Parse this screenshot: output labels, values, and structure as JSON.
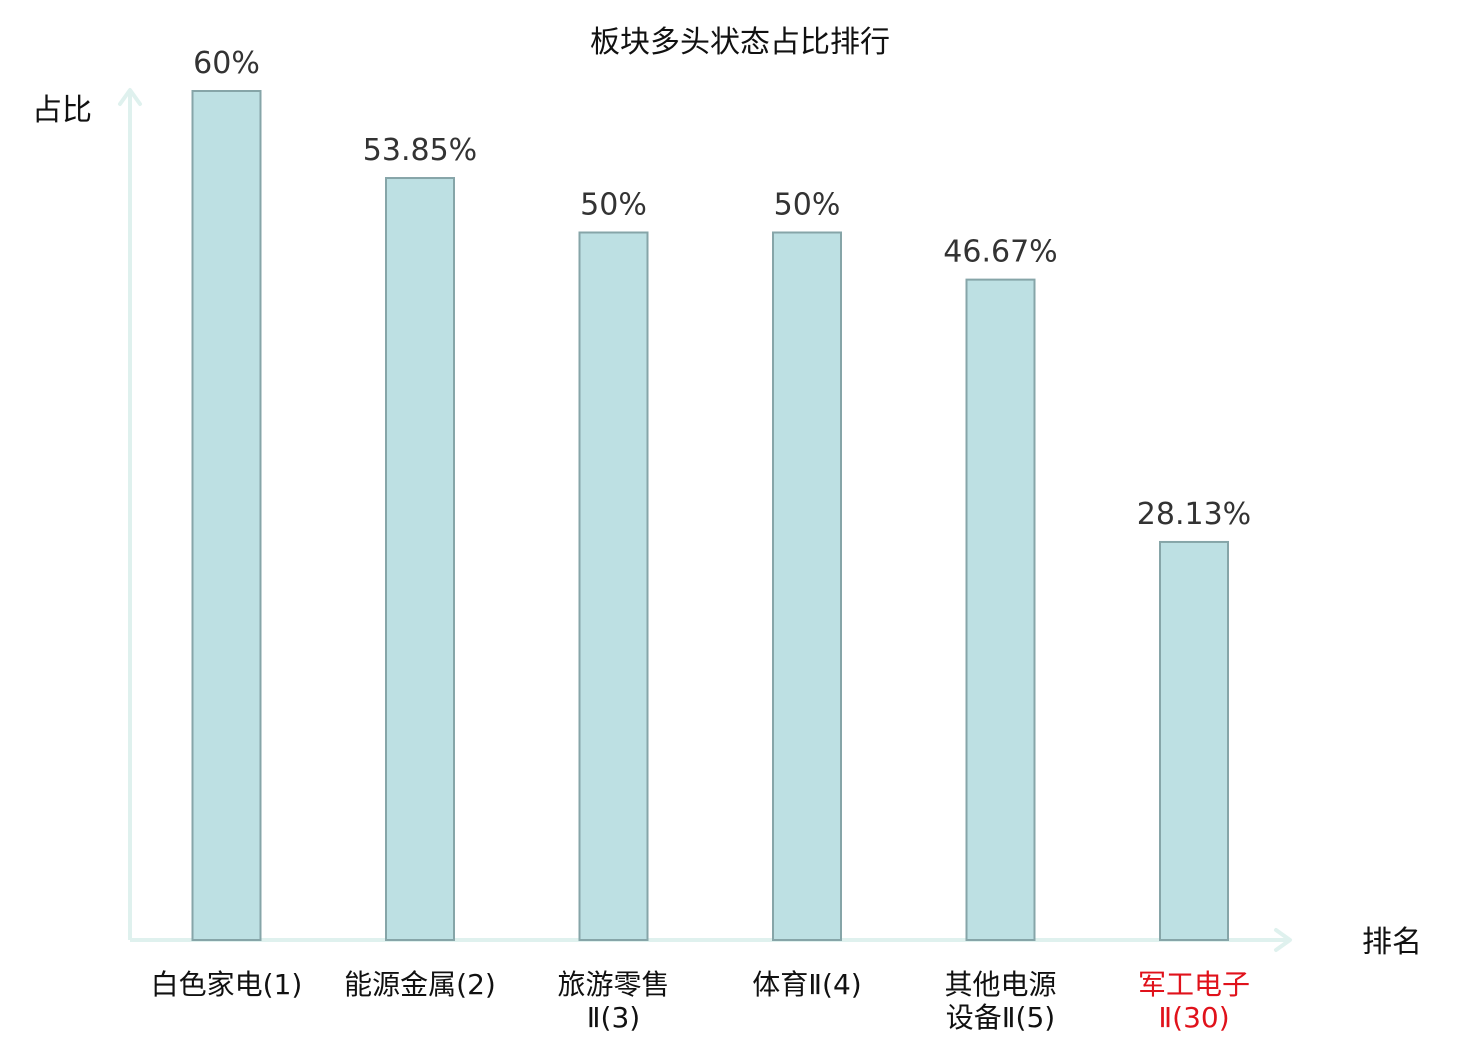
{
  "chart_data": {
    "type": "bar",
    "title": "板块多头状态占比排行",
    "ylabel": "占比",
    "xlabel": "排名",
    "ylim": [
      0,
      60
    ],
    "grid": false,
    "legend": "none",
    "categories": [
      [
        "白色家电(1)"
      ],
      [
        "能源金属(2)"
      ],
      [
        "旅游零售",
        "Ⅱ(3)"
      ],
      [
        "体育Ⅱ(4)"
      ],
      [
        "其他电源",
        "设备Ⅱ(5)"
      ],
      [
        "军工电子",
        "Ⅱ(30)"
      ]
    ],
    "values": [
      60,
      53.85,
      50,
      50,
      46.67,
      28.13
    ],
    "value_labels": [
      "60%",
      "53.85%",
      "50%",
      "50%",
      "46.67%",
      "28.13%"
    ],
    "highlight_index": 5,
    "colors": {
      "bar_fill": "#bde0e3",
      "bar_stroke": "#86a5a8",
      "axis": "#dff1ee",
      "label_normal": "#111111",
      "label_highlight": "#e0121b",
      "value_text": "#333333"
    }
  }
}
